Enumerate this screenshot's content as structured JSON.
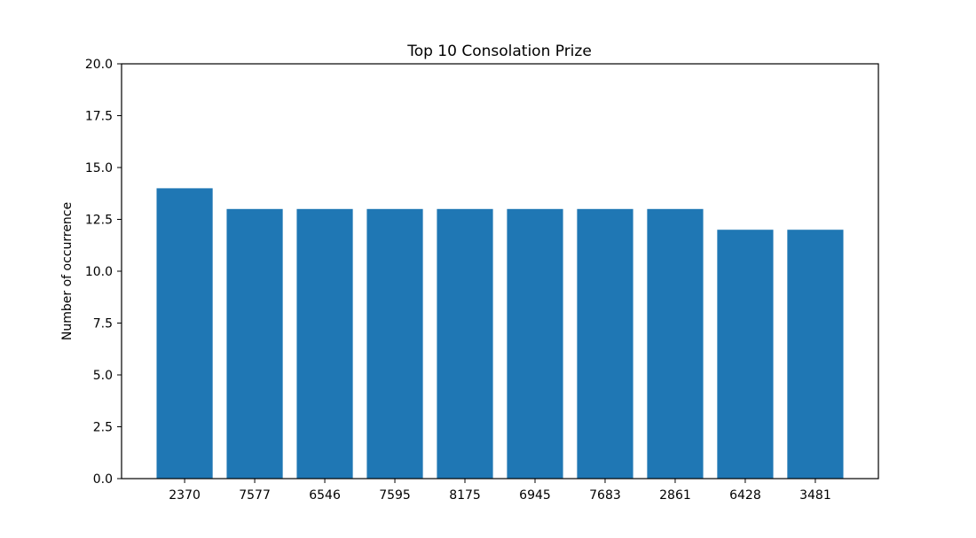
{
  "chart_data": {
    "type": "bar",
    "title": "Top 10 Consolation Prize",
    "xlabel": "",
    "ylabel": "Number of occurrence",
    "categories": [
      "2370",
      "7577",
      "6546",
      "7595",
      "8175",
      "6945",
      "7683",
      "2861",
      "6428",
      "3481"
    ],
    "values": [
      14,
      13,
      13,
      13,
      13,
      13,
      13,
      13,
      12,
      12
    ],
    "ylim": [
      0,
      20
    ],
    "yticks": [
      "0.0",
      "2.5",
      "5.0",
      "7.5",
      "10.0",
      "12.5",
      "15.0",
      "17.5",
      "20.0"
    ],
    "grid": false,
    "bar_color": "#1f77b4"
  }
}
